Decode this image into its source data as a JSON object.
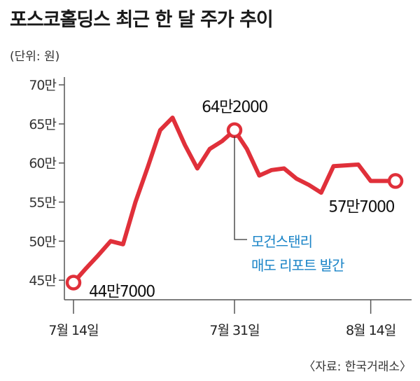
{
  "header": {
    "title": "포스코홀딩스 최근 한 달 주가 추이",
    "unit": "(단위: 원)"
  },
  "footer": {
    "source": "〈자료: 한국거래소〉"
  },
  "colors": {
    "line": "#e0303a",
    "marker_fill": "#ffffff",
    "annotation_text": "#1a84c7",
    "axis": "#555555",
    "grid": "#bbbbbb"
  },
  "chart_data": {
    "type": "line",
    "title": "포스코홀딩스 최근 한 달 주가 추이",
    "ylabel": "(단위: 원)",
    "ylim": [
      42.5,
      71
    ],
    "y_ticks": [
      {
        "value": 45,
        "label": "45만"
      },
      {
        "value": 50,
        "label": "50만"
      },
      {
        "value": 55,
        "label": "55만"
      },
      {
        "value": 60,
        "label": "60만"
      },
      {
        "value": 65,
        "label": "65만"
      },
      {
        "value": 70,
        "label": "70만"
      }
    ],
    "x_ticks": [
      {
        "index": 0,
        "label": "7월 14일"
      },
      {
        "index": 13,
        "label": "7월 31일"
      },
      {
        "index": 24,
        "label": "8월 14일"
      }
    ],
    "grid": "horizontal",
    "series": [
      {
        "values": [
          44.7,
          46.5,
          48.2,
          50.0,
          49.6,
          55.0,
          59.5,
          64.2,
          65.8,
          62.3,
          59.3,
          61.8,
          62.8,
          64.2,
          61.8,
          58.4,
          59.1,
          59.3,
          58.0,
          57.2,
          56.2,
          59.6,
          59.7,
          59.8,
          57.7,
          57.7,
          57.7
        ]
      }
    ],
    "point_labels": [
      {
        "index": 0,
        "text": "44만7000"
      },
      {
        "index": 13,
        "text": "64만2000"
      },
      {
        "index": 26,
        "text": "57만7000"
      }
    ],
    "annotation": {
      "index": 13,
      "lines": [
        "모건스탠리",
        "매도 리포트 발간"
      ]
    }
  }
}
